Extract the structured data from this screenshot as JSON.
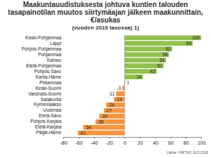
{
  "chart_data": {
    "type": "bar",
    "title": "Maakuntauudistuksesta johtuva kuntien talouden tasapainotilan muutos siirtymäajan jälkeen maakunnittain, €/asukas",
    "subtitle": "(vuoden 2019 tasossa) 1)",
    "source": "Lähde: VM/TAO 16.5.2018",
    "orientation": "horizontal",
    "categories": [
      "Keski-Pohjanmaa",
      "Lappi",
      "Pohjois-Pohjanmaa",
      "Pohjanmaa",
      "Kainuu",
      "Etelä-Pohjanmaa",
      "Pohjois-Savo",
      "Kanta-Häme",
      "Pirkanmaa",
      "Keski-Suomi",
      "Varsinais-Suomi",
      "Satakunta",
      "Kymenlaakso",
      "Uusimaa",
      "Etelä-Savo",
      "Pohjois-Karjala",
      "Etelä-Karjala",
      "Päijät-Häme"
    ],
    "values": [
      100,
      89,
      62,
      58,
      54,
      51,
      42,
      24,
      1,
      -3,
      -11,
      -14,
      -24,
      -27,
      -33,
      -38,
      -54,
      -61
    ],
    "colors": [
      "#92c04f",
      "#92c04f",
      "#92c04f",
      "#92c04f",
      "#92c04f",
      "#92c04f",
      "#92c04f",
      "#92c04f",
      "#92c04f",
      "#f7953f",
      "#f7953f",
      "#f7953f",
      "#f7953f",
      "#f7953f",
      "#f7953f",
      "#f7953f",
      "#f7953f",
      "#f7953f"
    ],
    "xlim": [
      -80,
      100
    ],
    "xticks": [
      -80,
      -60,
      -40,
      -20,
      0,
      20,
      40,
      60,
      80,
      100
    ],
    "data_labels": true,
    "grid": false
  }
}
